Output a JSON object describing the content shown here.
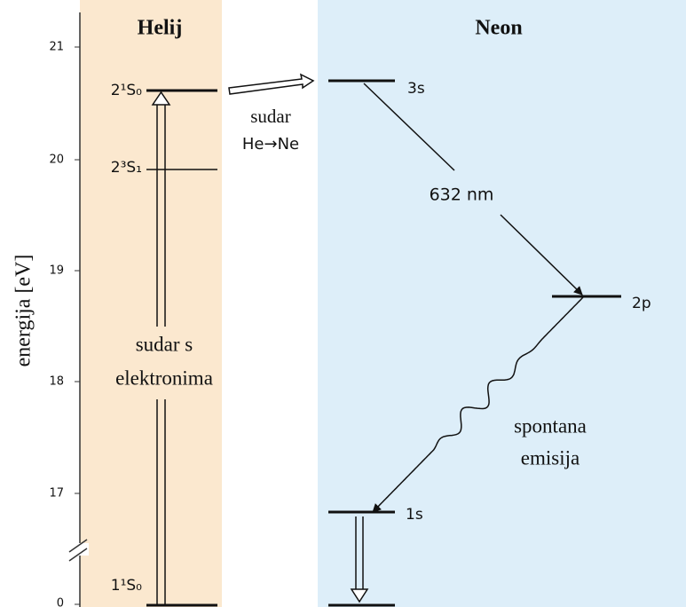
{
  "helium": {
    "title": "Helij",
    "levels": [
      "2¹S₀",
      "2³S₁",
      "1¹S₀"
    ],
    "excitation": [
      "sudar s",
      "elektronima"
    ]
  },
  "neon": {
    "title": "Neon",
    "levels": [
      "3s",
      "2p",
      "1s"
    ],
    "transition": "632 nm",
    "emission": [
      "spontana",
      "emisija"
    ]
  },
  "transfer": [
    "sudar",
    "He→Ne"
  ],
  "axis": {
    "label": "energija [eV]",
    "ticks": [
      "21",
      "20",
      "19",
      "18",
      "17",
      "0"
    ]
  }
}
